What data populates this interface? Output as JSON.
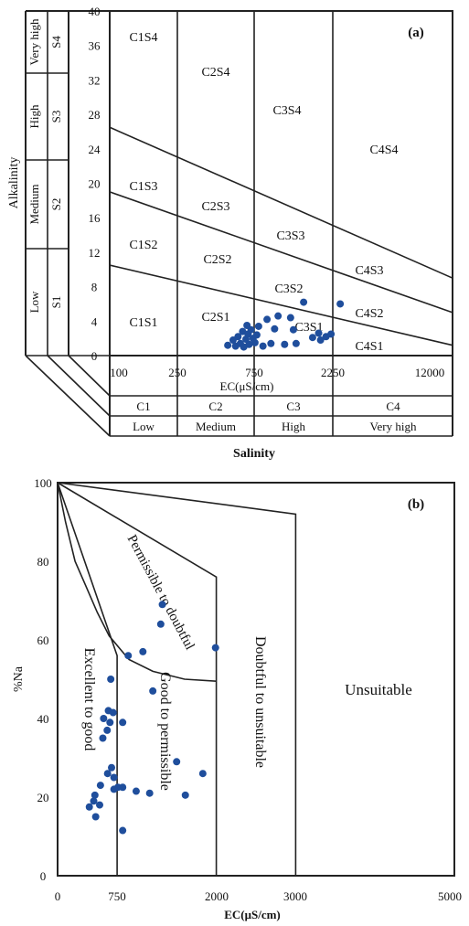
{
  "chart_data": [
    {
      "panel_label": "(a)",
      "type": "scatter",
      "ylabel": "Alkalinity",
      "xlabel": "EC(μS/cm)",
      "xlabel2": "Salinity",
      "ylim": [
        0,
        40
      ],
      "xscale": "log",
      "xlim": [
        100,
        12000
      ],
      "yticks": [
        "0",
        "4",
        "8",
        "12",
        "16",
        "20",
        "24",
        "28",
        "32",
        "36",
        "40"
      ],
      "xticks": [
        "100",
        "250",
        "750",
        "2250",
        "12000"
      ],
      "sodium_classes": [
        {
          "level": "Very high",
          "code": "S4"
        },
        {
          "level": "High",
          "code": "S3"
        },
        {
          "level": "Medium",
          "code": "S2"
        },
        {
          "level": "Low",
          "code": "S1"
        }
      ],
      "salinity_classes": [
        {
          "code": "C1",
          "level": "Low"
        },
        {
          "code": "C2",
          "level": "Medium"
        },
        {
          "code": "C3",
          "level": "High"
        },
        {
          "code": "C4",
          "level": "Very high"
        }
      ],
      "zone_labels": [
        "C1S4",
        "C2S4",
        "C3S4",
        "C4S4",
        "C1S3",
        "C2S3",
        "C3S3",
        "C4S3",
        "C1S2",
        "C2S2",
        "C3S2",
        "C4S2",
        "C1S1",
        "C2S1",
        "C3S1",
        "C4S1"
      ],
      "series": [
        {
          "color": "#1f4e9c",
          "points": [
            [
              520,
              1.2
            ],
            [
              560,
              1.8
            ],
            [
              580,
              1.1
            ],
            [
              600,
              2.2
            ],
            [
              620,
              1.4
            ],
            [
              640,
              2.8
            ],
            [
              650,
              1.0
            ],
            [
              670,
              1.9
            ],
            [
              680,
              3.5
            ],
            [
              690,
              2.5
            ],
            [
              700,
              1.3
            ],
            [
              720,
              3.0
            ],
            [
              740,
              2.0
            ],
            [
              760,
              1.5
            ],
            [
              780,
              2.4
            ],
            [
              800,
              3.4
            ],
            [
              850,
              1.1
            ],
            [
              900,
              4.2
            ],
            [
              950,
              1.4
            ],
            [
              1000,
              3.1
            ],
            [
              1050,
              4.6
            ],
            [
              1150,
              1.3
            ],
            [
              1250,
              4.4
            ],
            [
              1300,
              3.0
            ],
            [
              1350,
              1.4
            ],
            [
              1500,
              6.2
            ],
            [
              1700,
              2.1
            ],
            [
              1850,
              2.6
            ],
            [
              1900,
              1.8
            ],
            [
              2050,
              2.2
            ],
            [
              2200,
              2.5
            ],
            [
              2500,
              6.0
            ]
          ]
        }
      ]
    },
    {
      "panel_label": "(b)",
      "type": "scatter",
      "ylabel": "%Na",
      "xlabel": "EC(μS/cm)",
      "ylim": [
        0,
        100
      ],
      "xlim": [
        0,
        5000
      ],
      "yticks": [
        "0",
        "20",
        "40",
        "60",
        "80",
        "100"
      ],
      "xticks": [
        "0",
        "750",
        "2000",
        "3000",
        "5000"
      ],
      "region_labels": [
        "Permissible to doubtful",
        "Excellent to good",
        "Good to permissible",
        "Doubtful to unsuitable",
        "Unsuitable"
      ],
      "series": [
        {
          "color": "#1f4e9c",
          "points": [
            [
              1320,
              69
            ],
            [
              1300,
              64
            ],
            [
              1990,
              58
            ],
            [
              1075,
              57
            ],
            [
              890,
              56
            ],
            [
              670,
              50
            ],
            [
              1200,
              47
            ],
            [
              640,
              42
            ],
            [
              700,
              41.5
            ],
            [
              580,
              40
            ],
            [
              660,
              39
            ],
            [
              820,
              39
            ],
            [
              625,
              37
            ],
            [
              570,
              35
            ],
            [
              1500,
              29
            ],
            [
              680,
              27.5
            ],
            [
              630,
              26
            ],
            [
              1830,
              26
            ],
            [
              710,
              25
            ],
            [
              540,
              23
            ],
            [
              760,
              22.5
            ],
            [
              820,
              22.5
            ],
            [
              710,
              22
            ],
            [
              990,
              21.5
            ],
            [
              1160,
              21
            ],
            [
              1610,
              20.5
            ],
            [
              470,
              20.5
            ],
            [
              455,
              19
            ],
            [
              530,
              18
            ],
            [
              400,
              17.5
            ],
            [
              480,
              15
            ],
            [
              820,
              11.5
            ]
          ]
        }
      ]
    }
  ]
}
